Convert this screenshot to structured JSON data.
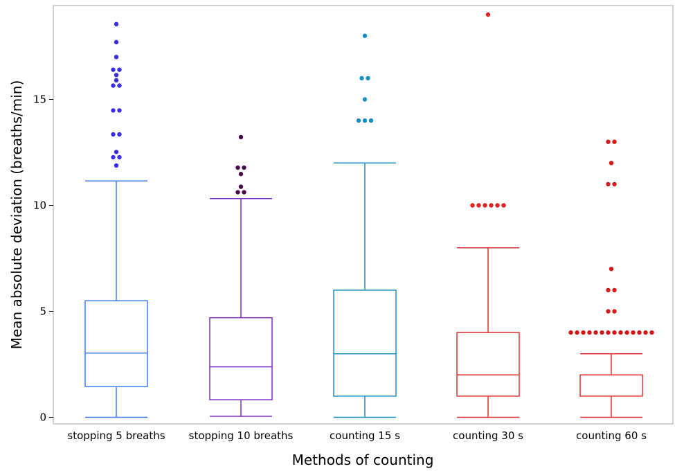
{
  "chart_data": {
    "type": "boxplot",
    "title": "",
    "xlabel": "Methods of counting",
    "ylabel": "Mean absolute deviation (breaths/min)",
    "ylim": [
      -0.4,
      19.4
    ],
    "yticks": [
      0,
      5,
      10,
      15
    ],
    "grid": false,
    "legend": "none",
    "categories": [
      "stopping 5 breaths",
      "stopping 10 breaths",
      "counting 15 s",
      "counting 30 s",
      "counting 60 s"
    ],
    "series": [
      {
        "box_color": "#3f7fe8",
        "outlier_color": "#3a2fe0",
        "whisker_low": 0,
        "q1": 1.45,
        "median": 3.03,
        "q3": 5.5,
        "whisker_high": 11.15,
        "outliers": [
          [
            11.88,
            0
          ],
          [
            12.27,
            -1
          ],
          [
            12.27,
            1
          ],
          [
            12.52,
            0
          ],
          [
            13.35,
            -1
          ],
          [
            13.35,
            1
          ],
          [
            14.48,
            -1
          ],
          [
            14.48,
            1
          ],
          [
            15.65,
            -1
          ],
          [
            15.65,
            1
          ],
          [
            15.9,
            0
          ],
          [
            16.15,
            0
          ],
          [
            16.4,
            -1
          ],
          [
            16.4,
            1
          ],
          [
            17.0,
            0
          ],
          [
            17.7,
            0
          ],
          [
            18.55,
            0
          ]
        ]
      },
      {
        "box_color": "#7b2fc0",
        "outlier_color": "#4a0a4a",
        "whisker_low": 0.05,
        "q1": 0.83,
        "median": 2.38,
        "q3": 4.7,
        "whisker_high": 10.32,
        "outliers": [
          [
            10.62,
            -1
          ],
          [
            10.62,
            1
          ],
          [
            10.88,
            0
          ],
          [
            11.48,
            0
          ],
          [
            11.78,
            -1
          ],
          [
            11.78,
            1
          ],
          [
            13.22,
            0
          ]
        ]
      },
      {
        "box_color": "#1f8fc0",
        "outlier_color": "#1a8fc0",
        "whisker_low": 0,
        "q1": 1.0,
        "median": 3.0,
        "q3": 6.0,
        "whisker_high": 12.0,
        "outliers": [
          [
            14.0,
            -2
          ],
          [
            14.0,
            0
          ],
          [
            14.0,
            2
          ],
          [
            15.0,
            0
          ],
          [
            16.0,
            -1
          ],
          [
            16.0,
            1
          ],
          [
            18.0,
            0
          ]
        ]
      },
      {
        "box_color": "#e03030",
        "outlier_color": "#e02020",
        "whisker_low": 0,
        "q1": 1.0,
        "median": 2.0,
        "q3": 4.0,
        "whisker_high": 8.0,
        "outliers": [
          [
            10.0,
            -5
          ],
          [
            10.0,
            -3
          ],
          [
            10.0,
            -1
          ],
          [
            10.0,
            1
          ],
          [
            10.0,
            3
          ],
          [
            10.0,
            5
          ],
          [
            19.0,
            0
          ]
        ]
      },
      {
        "box_color": "#e03030",
        "outlier_color": "#d41a1a",
        "whisker_low": 0,
        "q1": 1.0,
        "median": 2.0,
        "q3": 2.0,
        "whisker_high": 3.0,
        "outliers": [
          [
            4.0,
            -13
          ],
          [
            4.0,
            -11
          ],
          [
            4.0,
            -9
          ],
          [
            4.0,
            -7
          ],
          [
            4.0,
            -5
          ],
          [
            4.0,
            -3
          ],
          [
            4.0,
            -1
          ],
          [
            4.0,
            1
          ],
          [
            4.0,
            3
          ],
          [
            4.0,
            5
          ],
          [
            4.0,
            7
          ],
          [
            4.0,
            9
          ],
          [
            4.0,
            11
          ],
          [
            4.0,
            13
          ],
          [
            5.0,
            -1
          ],
          [
            5.0,
            1
          ],
          [
            6.0,
            -1
          ],
          [
            6.0,
            1
          ],
          [
            7.0,
            0
          ],
          [
            11.0,
            -1
          ],
          [
            11.0,
            1
          ],
          [
            12.0,
            0
          ],
          [
            13.0,
            -1
          ],
          [
            13.0,
            1
          ]
        ]
      }
    ]
  }
}
